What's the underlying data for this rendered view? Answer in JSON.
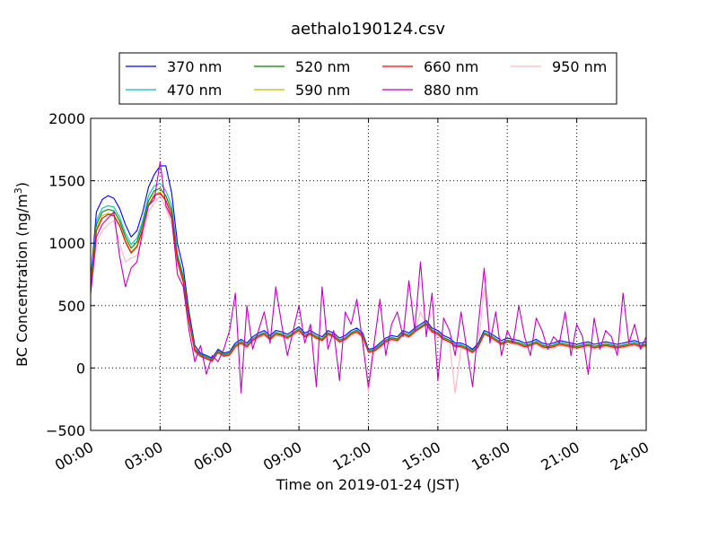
{
  "chart_data": {
    "type": "line",
    "title": "aethalo190124.csv",
    "xlabel": "Time on 2019-01-24 (JST)",
    "ylabel": "BC Concentration (ng/m³)",
    "ylabel_main": "BC Concentration (ng/m",
    "ylabel_sup": "3",
    "ylabel_end": ")",
    "xlim": [
      0,
      24
    ],
    "ylim": [
      -500,
      2000
    ],
    "x_ticks": [
      0,
      3,
      6,
      9,
      12,
      15,
      18,
      21,
      24
    ],
    "x_tick_labels": [
      "00:00",
      "03:00",
      "06:00",
      "09:00",
      "12:00",
      "15:00",
      "18:00",
      "21:00",
      "24:00"
    ],
    "y_ticks": [
      -500,
      0,
      500,
      1000,
      1500,
      2000
    ],
    "y_tick_labels": [
      "−500",
      "0",
      "500",
      "1000",
      "1500",
      "2000"
    ],
    "grid": true,
    "legend_position": "top",
    "x_unit": "hours since 00:00",
    "x": [
      0.0,
      0.25,
      0.5,
      0.75,
      1.0,
      1.25,
      1.5,
      1.75,
      2.0,
      2.25,
      2.5,
      2.75,
      3.0,
      3.25,
      3.5,
      3.75,
      4.0,
      4.25,
      4.5,
      4.75,
      5.0,
      5.25,
      5.5,
      5.75,
      6.0,
      6.25,
      6.5,
      6.75,
      7.0,
      7.25,
      7.5,
      7.75,
      8.0,
      8.25,
      8.5,
      8.75,
      9.0,
      9.25,
      9.5,
      9.75,
      10.0,
      10.25,
      10.5,
      10.75,
      11.0,
      11.25,
      11.5,
      11.75,
      12.0,
      12.25,
      12.5,
      12.75,
      13.0,
      13.25,
      13.5,
      13.75,
      14.0,
      14.25,
      14.5,
      14.75,
      15.0,
      15.25,
      15.5,
      15.75,
      16.0,
      16.25,
      16.5,
      16.75,
      17.0,
      17.25,
      17.5,
      17.75,
      18.0,
      18.25,
      18.5,
      18.75,
      19.0,
      19.25,
      19.5,
      19.75,
      20.0,
      20.25,
      20.5,
      20.75,
      21.0,
      21.25,
      21.5,
      21.75,
      22.0,
      22.25,
      22.5,
      22.75,
      23.0,
      23.25,
      23.5,
      23.75,
      24.0
    ],
    "series": [
      {
        "name": "370 nm",
        "color": "#0000ff",
        "values": [
          700,
          1250,
          1350,
          1380,
          1360,
          1280,
          1150,
          1050,
          1100,
          1250,
          1450,
          1550,
          1620,
          1620,
          1400,
          1000,
          800,
          450,
          180,
          120,
          100,
          80,
          150,
          120,
          130,
          200,
          230,
          200,
          250,
          280,
          300,
          260,
          300,
          290,
          270,
          300,
          330,
          280,
          300,
          270,
          250,
          300,
          280,
          240,
          260,
          300,
          320,
          280,
          150,
          160,
          200,
          240,
          260,
          250,
          300,
          280,
          320,
          350,
          380,
          320,
          300,
          260,
          240,
          200,
          200,
          180,
          150,
          200,
          300,
          280,
          250,
          220,
          240,
          230,
          220,
          200,
          210,
          230,
          200,
          190,
          200,
          220,
          210,
          200,
          190,
          200,
          210,
          190,
          200,
          210,
          200,
          190,
          200,
          210,
          220,
          200,
          210
        ]
      },
      {
        "name": "470 nm",
        "color": "#00bfbf",
        "values": [
          680,
          1180,
          1280,
          1300,
          1290,
          1210,
          1080,
          990,
          1040,
          1180,
          1380,
          1460,
          1480,
          1420,
          1300,
          920,
          740,
          410,
          160,
          110,
          90,
          70,
          140,
          110,
          120,
          185,
          215,
          185,
          235,
          265,
          285,
          245,
          285,
          275,
          255,
          285,
          315,
          265,
          285,
          255,
          235,
          285,
          265,
          225,
          245,
          285,
          305,
          265,
          140,
          150,
          185,
          225,
          245,
          235,
          285,
          265,
          305,
          335,
          365,
          305,
          285,
          245,
          225,
          185,
          185,
          165,
          140,
          185,
          285,
          265,
          235,
          205,
          225,
          215,
          205,
          185,
          195,
          215,
          185,
          175,
          185,
          205,
          195,
          185,
          175,
          185,
          195,
          175,
          185,
          195,
          185,
          175,
          185,
          195,
          205,
          185,
          195
        ]
      },
      {
        "name": "520 nm",
        "color": "#008000",
        "values": [
          660,
          1150,
          1250,
          1270,
          1260,
          1180,
          1050,
          960,
          1010,
          1150,
          1340,
          1420,
          1440,
          1380,
          1260,
          890,
          720,
          400,
          150,
          105,
          85,
          65,
          135,
          105,
          115,
          180,
          210,
          180,
          230,
          260,
          280,
          240,
          280,
          270,
          250,
          280,
          310,
          260,
          280,
          250,
          230,
          280,
          260,
          220,
          240,
          280,
          300,
          260,
          135,
          145,
          180,
          220,
          240,
          230,
          280,
          260,
          300,
          330,
          360,
          300,
          280,
          240,
          220,
          180,
          180,
          160,
          135,
          180,
          280,
          260,
          230,
          200,
          220,
          210,
          200,
          180,
          190,
          210,
          180,
          170,
          180,
          200,
          190,
          180,
          170,
          180,
          190,
          170,
          180,
          190,
          180,
          170,
          180,
          190,
          200,
          180,
          190
        ]
      },
      {
        "name": "590 nm",
        "color": "#bfbf00",
        "values": [
          640,
          1120,
          1220,
          1240,
          1230,
          1150,
          1020,
          930,
          980,
          1120,
          1310,
          1390,
          1410,
          1350,
          1230,
          870,
          700,
          390,
          140,
          100,
          80,
          60,
          130,
          100,
          110,
          175,
          205,
          175,
          225,
          255,
          275,
          235,
          275,
          265,
          245,
          275,
          305,
          255,
          275,
          245,
          225,
          275,
          255,
          215,
          235,
          275,
          295,
          255,
          130,
          140,
          175,
          215,
          235,
          225,
          275,
          255,
          295,
          325,
          355,
          295,
          275,
          235,
          215,
          175,
          175,
          155,
          130,
          175,
          275,
          255,
          225,
          195,
          215,
          205,
          195,
          175,
          185,
          205,
          175,
          165,
          175,
          195,
          185,
          175,
          165,
          175,
          185,
          165,
          175,
          185,
          175,
          165,
          175,
          185,
          195,
          175,
          185
        ]
      },
      {
        "name": "660 nm",
        "color": "#ff0000",
        "values": [
          620,
          1100,
          1200,
          1230,
          1220,
          1140,
          1010,
          920,
          970,
          1110,
          1300,
          1380,
          1400,
          1340,
          1220,
          860,
          690,
          380,
          135,
          95,
          75,
          55,
          125,
          95,
          105,
          170,
          200,
          170,
          220,
          250,
          270,
          230,
          270,
          260,
          240,
          270,
          300,
          250,
          270,
          240,
          220,
          270,
          250,
          210,
          230,
          270,
          290,
          250,
          125,
          135,
          170,
          210,
          230,
          220,
          270,
          250,
          290,
          320,
          350,
          290,
          270,
          230,
          210,
          170,
          170,
          150,
          125,
          170,
          270,
          250,
          220,
          190,
          210,
          200,
          190,
          170,
          180,
          200,
          170,
          160,
          170,
          190,
          180,
          170,
          160,
          170,
          180,
          160,
          170,
          180,
          170,
          160,
          170,
          180,
          190,
          170,
          180
        ]
      },
      {
        "name": "880 nm",
        "color": "#bf00bf",
        "values": [
          600,
          1050,
          1150,
          1200,
          1250,
          900,
          650,
          800,
          850,
          1100,
          1300,
          1350,
          1650,
          1300,
          1200,
          750,
          650,
          300,
          50,
          180,
          -50,
          100,
          50,
          150,
          300,
          600,
          -200,
          500,
          150,
          300,
          450,
          200,
          650,
          350,
          100,
          300,
          500,
          200,
          350,
          -150,
          650,
          150,
          300,
          -100,
          450,
          350,
          550,
          200,
          -150,
          200,
          550,
          100,
          350,
          450,
          250,
          700,
          300,
          850,
          250,
          600,
          -100,
          400,
          300,
          100,
          450,
          150,
          -150,
          350,
          800,
          200,
          450,
          100,
          300,
          200,
          500,
          250,
          100,
          400,
          300,
          150,
          250,
          200,
          450,
          100,
          350,
          250,
          -50,
          400,
          150,
          300,
          250,
          100,
          600,
          200,
          350,
          150,
          250
        ]
      },
      {
        "name": "950 nm",
        "color": "#ffb6c1",
        "values": [
          580,
          1000,
          1100,
          1150,
          1180,
          1000,
          850,
          880,
          900,
          1050,
          1250,
          1320,
          1380,
          1280,
          1150,
          820,
          680,
          360,
          120,
          90,
          70,
          50,
          120,
          90,
          100,
          160,
          190,
          160,
          210,
          240,
          260,
          220,
          260,
          250,
          230,
          260,
          290,
          240,
          260,
          230,
          210,
          260,
          240,
          200,
          220,
          260,
          280,
          240,
          -200,
          130,
          160,
          200,
          220,
          210,
          260,
          240,
          280,
          450,
          340,
          280,
          260,
          220,
          200,
          -200,
          160,
          140,
          120,
          160,
          650,
          240,
          210,
          180,
          200,
          190,
          180,
          160,
          170,
          190,
          160,
          150,
          160,
          180,
          170,
          160,
          150,
          160,
          170,
          150,
          160,
          170,
          160,
          150,
          160,
          170,
          180,
          160,
          170
        ]
      }
    ]
  }
}
